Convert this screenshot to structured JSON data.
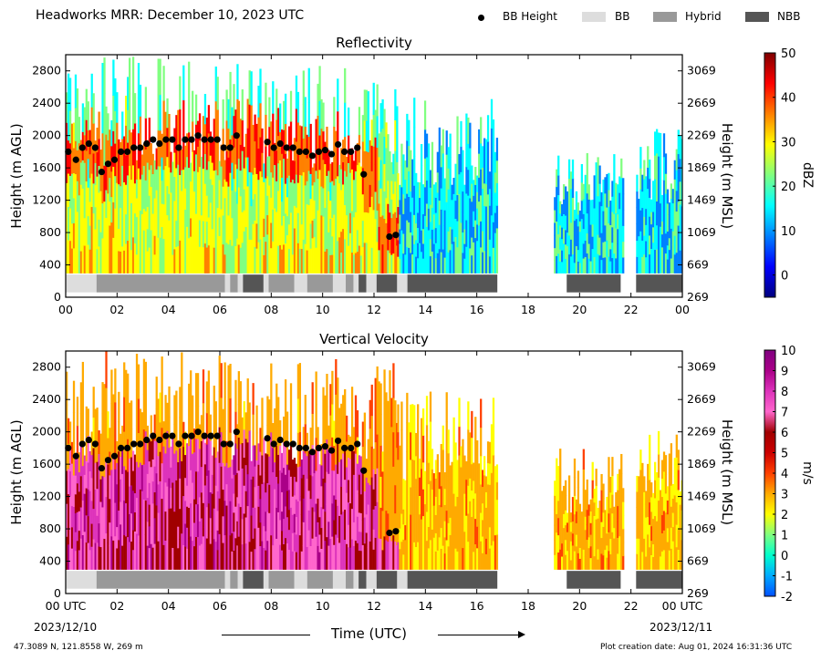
{
  "header": {
    "title": "Headworks MRR:  December 10, 2023 UTC",
    "legend": [
      {
        "label": "BB Height",
        "kind": "dot",
        "color": "#000000"
      },
      {
        "label": "BB",
        "kind": "bar",
        "color": "#dddddd"
      },
      {
        "label": "Hybrid",
        "kind": "bar",
        "color": "#999999"
      },
      {
        "label": "NBB",
        "kind": "bar",
        "color": "#555555"
      }
    ]
  },
  "footer": {
    "location": "47.3089 N, 121.8558 W, 269 m",
    "creation": "Plot creation date: Aug 01, 2024 16:31:36 UTC",
    "start_date": "2023/12/10",
    "end_date": "2023/12/11",
    "xlabel": "Time (UTC)"
  },
  "chart_data": [
    {
      "type": "heatmap",
      "title": "Reflectivity",
      "ylabel": "Height (m AGL)",
      "ylabel_right": "Height (m MSL)",
      "x_ticks": [
        "00",
        "02",
        "04",
        "06",
        "08",
        "10",
        "12",
        "14",
        "16",
        "18",
        "20",
        "22",
        "00"
      ],
      "xlim_hours": [
        0,
        24
      ],
      "ylim": [
        0,
        3000
      ],
      "y_ticks": [
        0,
        400,
        800,
        1200,
        1600,
        2000,
        2400,
        2800
      ],
      "y_ticks_right": [
        269,
        669,
        1069,
        1469,
        1869,
        2269,
        2669,
        3069
      ],
      "colorbar": {
        "label": "dBZ",
        "min": -5,
        "max": 50,
        "ticks": [
          "50",
          "40",
          "30",
          "20",
          "10",
          "0"
        ],
        "tick_values": [
          50,
          40,
          30,
          20,
          10,
          0
        ],
        "colors": [
          "#00007f",
          "#0000ff",
          "#0080ff",
          "#00ffff",
          "#80ff80",
          "#ffff00",
          "#ff8000",
          "#ff0000",
          "#7f0000"
        ]
      },
      "precip_segments": [
        {
          "start": 0.0,
          "end": 6.7,
          "top": 3000
        },
        {
          "start": 6.7,
          "end": 12.9,
          "top": 2900
        },
        {
          "start": 12.9,
          "end": 16.8,
          "top": 2500
        },
        {
          "start": 19.0,
          "end": 21.7,
          "top": 1800
        },
        {
          "start": 22.2,
          "end": 24.0,
          "top": 2100
        }
      ],
      "bb_points": [
        [
          0.1,
          1800
        ],
        [
          0.4,
          1700
        ],
        [
          0.65,
          1850
        ],
        [
          0.9,
          1900
        ],
        [
          1.15,
          1850
        ],
        [
          1.4,
          1550
        ],
        [
          1.65,
          1650
        ],
        [
          1.9,
          1700
        ],
        [
          2.15,
          1800
        ],
        [
          2.4,
          1800
        ],
        [
          2.65,
          1850
        ],
        [
          2.9,
          1850
        ],
        [
          3.15,
          1900
        ],
        [
          3.4,
          1950
        ],
        [
          3.65,
          1900
        ],
        [
          3.9,
          1950
        ],
        [
          4.15,
          1950
        ],
        [
          4.4,
          1850
        ],
        [
          4.65,
          1950
        ],
        [
          4.9,
          1950
        ],
        [
          5.15,
          2000
        ],
        [
          5.4,
          1950
        ],
        [
          5.65,
          1950
        ],
        [
          5.9,
          1950
        ],
        [
          6.15,
          1850
        ],
        [
          6.4,
          1850
        ],
        [
          6.65,
          2000
        ],
        [
          7.85,
          1920
        ],
        [
          8.1,
          1850
        ],
        [
          8.35,
          1900
        ],
        [
          8.6,
          1850
        ],
        [
          8.85,
          1850
        ],
        [
          9.1,
          1800
        ],
        [
          9.35,
          1800
        ],
        [
          9.6,
          1750
        ],
        [
          9.85,
          1800
        ],
        [
          10.1,
          1820
        ],
        [
          10.35,
          1770
        ],
        [
          10.6,
          1890
        ],
        [
          10.85,
          1800
        ],
        [
          11.1,
          1800
        ],
        [
          11.35,
          1850
        ],
        [
          11.6,
          1520
        ],
        [
          12.6,
          750
        ],
        [
          12.85,
          770
        ]
      ],
      "class_segments": [
        {
          "start": 0.0,
          "end": 1.2,
          "class": "BB"
        },
        {
          "start": 1.2,
          "end": 6.2,
          "class": "Hybrid"
        },
        {
          "start": 6.2,
          "end": 6.4,
          "class": "BB"
        },
        {
          "start": 6.4,
          "end": 6.7,
          "class": "Hybrid"
        },
        {
          "start": 6.7,
          "end": 6.9,
          "class": "BB"
        },
        {
          "start": 6.9,
          "end": 7.7,
          "class": "NBB"
        },
        {
          "start": 7.7,
          "end": 7.9,
          "class": "BB"
        },
        {
          "start": 7.9,
          "end": 8.9,
          "class": "Hybrid"
        },
        {
          "start": 8.9,
          "end": 9.4,
          "class": "BB"
        },
        {
          "start": 9.4,
          "end": 10.4,
          "class": "Hybrid"
        },
        {
          "start": 10.4,
          "end": 10.9,
          "class": "BB"
        },
        {
          "start": 10.9,
          "end": 11.2,
          "class": "Hybrid"
        },
        {
          "start": 11.2,
          "end": 11.4,
          "class": "BB"
        },
        {
          "start": 11.4,
          "end": 11.7,
          "class": "NBB"
        },
        {
          "start": 11.7,
          "end": 12.1,
          "class": "BB"
        },
        {
          "start": 12.1,
          "end": 12.9,
          "class": "NBB"
        },
        {
          "start": 12.9,
          "end": 13.3,
          "class": "BB"
        },
        {
          "start": 13.3,
          "end": 16.8,
          "class": "NBB"
        },
        {
          "start": 19.5,
          "end": 21.6,
          "class": "NBB"
        },
        {
          "start": 22.2,
          "end": 24.0,
          "class": "NBB"
        }
      ]
    },
    {
      "type": "heatmap",
      "title": "Vertical Velocity",
      "ylabel": "Height (m AGL)",
      "ylabel_right": "Height (m MSL)",
      "x_ticks": [
        "00 UTC",
        "02",
        "04",
        "06",
        "08",
        "10",
        "12",
        "14",
        "16",
        "18",
        "20",
        "22",
        "00 UTC"
      ],
      "xlim_hours": [
        0,
        24
      ],
      "ylim": [
        0,
        3000
      ],
      "y_ticks": [
        0,
        400,
        800,
        1200,
        1600,
        2000,
        2400,
        2800
      ],
      "y_ticks_right": [
        269,
        669,
        1069,
        1469,
        1869,
        2269,
        2669,
        3069
      ],
      "colorbar": {
        "label": "m/s",
        "min": -2,
        "max": 10,
        "ticks": [
          "10",
          "9",
          "8",
          "7",
          "6",
          "5",
          "4",
          "3",
          "2",
          "1",
          "0",
          "-1",
          "-2"
        ],
        "tick_values": [
          10,
          9,
          8,
          7,
          6,
          5,
          4,
          3,
          2,
          1,
          0,
          -1,
          -2
        ],
        "colors": [
          "#0050ff",
          "#00aaff",
          "#00ffcc",
          "#80ff80",
          "#ffff00",
          "#ffaa00",
          "#ff4000",
          "#cc0000",
          "#a00000",
          "#ff66cc",
          "#dd33bb",
          "#aa0088",
          "#800080"
        ]
      },
      "precip_segments": [
        {
          "start": 0.0,
          "end": 6.7,
          "top": 3000
        },
        {
          "start": 6.7,
          "end": 12.9,
          "top": 2900
        },
        {
          "start": 12.9,
          "end": 16.8,
          "top": 2500
        },
        {
          "start": 19.0,
          "end": 21.7,
          "top": 1800
        },
        {
          "start": 22.2,
          "end": 24.0,
          "top": 2100
        }
      ],
      "bb_points": [
        [
          0.1,
          1800
        ],
        [
          0.4,
          1700
        ],
        [
          0.65,
          1850
        ],
        [
          0.9,
          1900
        ],
        [
          1.15,
          1850
        ],
        [
          1.4,
          1550
        ],
        [
          1.65,
          1650
        ],
        [
          1.9,
          1700
        ],
        [
          2.15,
          1800
        ],
        [
          2.4,
          1800
        ],
        [
          2.65,
          1850
        ],
        [
          2.9,
          1850
        ],
        [
          3.15,
          1900
        ],
        [
          3.4,
          1950
        ],
        [
          3.65,
          1900
        ],
        [
          3.9,
          1950
        ],
        [
          4.15,
          1950
        ],
        [
          4.4,
          1850
        ],
        [
          4.65,
          1950
        ],
        [
          4.9,
          1950
        ],
        [
          5.15,
          2000
        ],
        [
          5.4,
          1950
        ],
        [
          5.65,
          1950
        ],
        [
          5.9,
          1950
        ],
        [
          6.15,
          1850
        ],
        [
          6.4,
          1850
        ],
        [
          6.65,
          2000
        ],
        [
          7.85,
          1920
        ],
        [
          8.1,
          1850
        ],
        [
          8.35,
          1900
        ],
        [
          8.6,
          1850
        ],
        [
          8.85,
          1850
        ],
        [
          9.1,
          1800
        ],
        [
          9.35,
          1800
        ],
        [
          9.6,
          1750
        ],
        [
          9.85,
          1800
        ],
        [
          10.1,
          1820
        ],
        [
          10.35,
          1770
        ],
        [
          10.6,
          1890
        ],
        [
          10.85,
          1800
        ],
        [
          11.1,
          1800
        ],
        [
          11.35,
          1850
        ],
        [
          11.6,
          1520
        ],
        [
          12.6,
          750
        ],
        [
          12.85,
          770
        ]
      ],
      "class_segments": [
        {
          "start": 0.0,
          "end": 1.2,
          "class": "BB"
        },
        {
          "start": 1.2,
          "end": 6.2,
          "class": "Hybrid"
        },
        {
          "start": 6.2,
          "end": 6.4,
          "class": "BB"
        },
        {
          "start": 6.4,
          "end": 6.7,
          "class": "Hybrid"
        },
        {
          "start": 6.7,
          "end": 6.9,
          "class": "BB"
        },
        {
          "start": 6.9,
          "end": 7.7,
          "class": "NBB"
        },
        {
          "start": 7.7,
          "end": 7.9,
          "class": "BB"
        },
        {
          "start": 7.9,
          "end": 8.9,
          "class": "Hybrid"
        },
        {
          "start": 8.9,
          "end": 9.4,
          "class": "BB"
        },
        {
          "start": 9.4,
          "end": 10.4,
          "class": "Hybrid"
        },
        {
          "start": 10.4,
          "end": 10.9,
          "class": "BB"
        },
        {
          "start": 10.9,
          "end": 11.2,
          "class": "Hybrid"
        },
        {
          "start": 11.2,
          "end": 11.4,
          "class": "BB"
        },
        {
          "start": 11.4,
          "end": 11.7,
          "class": "NBB"
        },
        {
          "start": 11.7,
          "end": 12.1,
          "class": "BB"
        },
        {
          "start": 12.1,
          "end": 12.9,
          "class": "NBB"
        },
        {
          "start": 12.9,
          "end": 13.3,
          "class": "BB"
        },
        {
          "start": 13.3,
          "end": 16.8,
          "class": "NBB"
        },
        {
          "start": 19.5,
          "end": 21.6,
          "class": "NBB"
        },
        {
          "start": 22.2,
          "end": 24.0,
          "class": "NBB"
        }
      ]
    }
  ]
}
